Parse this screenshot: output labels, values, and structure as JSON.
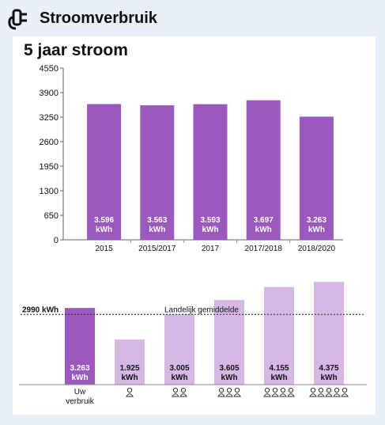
{
  "page": {
    "title": "Stroomverbruik"
  },
  "chart1": {
    "title": "5 jaar stroom",
    "chart_data": {
      "type": "bar",
      "categories": [
        "2015",
        "2015/2017",
        "2017",
        "2017/2018",
        "2018/2020"
      ],
      "values": [
        3596,
        3563,
        3593,
        3697,
        3263
      ],
      "value_labels": [
        "3.596",
        "3.563",
        "3.593",
        "3.697",
        "3.263"
      ],
      "unit": "kWh",
      "yticks": [
        0,
        650,
        1300,
        1950,
        2600,
        3250,
        3900,
        4550
      ],
      "ylim": [
        0,
        4550
      ],
      "colors": {
        "bar": "#9b59c0"
      }
    }
  },
  "chart2": {
    "chart_data": {
      "type": "bar",
      "categories": [
        "Uw verbruik",
        "1 persoon",
        "2 personen",
        "3 personen",
        "4 personen",
        "5 personen"
      ],
      "category_label_first": "Uw\nverbruik",
      "persons": [
        0,
        1,
        2,
        3,
        4,
        5
      ],
      "values": [
        3263,
        1925,
        3005,
        3605,
        4155,
        4375
      ],
      "value_labels": [
        "3.263",
        "1.925",
        "3.005",
        "3.605",
        "4.155",
        "4.375"
      ],
      "unit": "kWh",
      "reference": {
        "label": "Landelijk gemiddelde",
        "value": 2990,
        "value_label": "2990 kWh"
      },
      "ylim": [
        0,
        4550
      ],
      "colors": {
        "highlight": "#9b59c0",
        "other": "#d6b8e6"
      }
    }
  }
}
